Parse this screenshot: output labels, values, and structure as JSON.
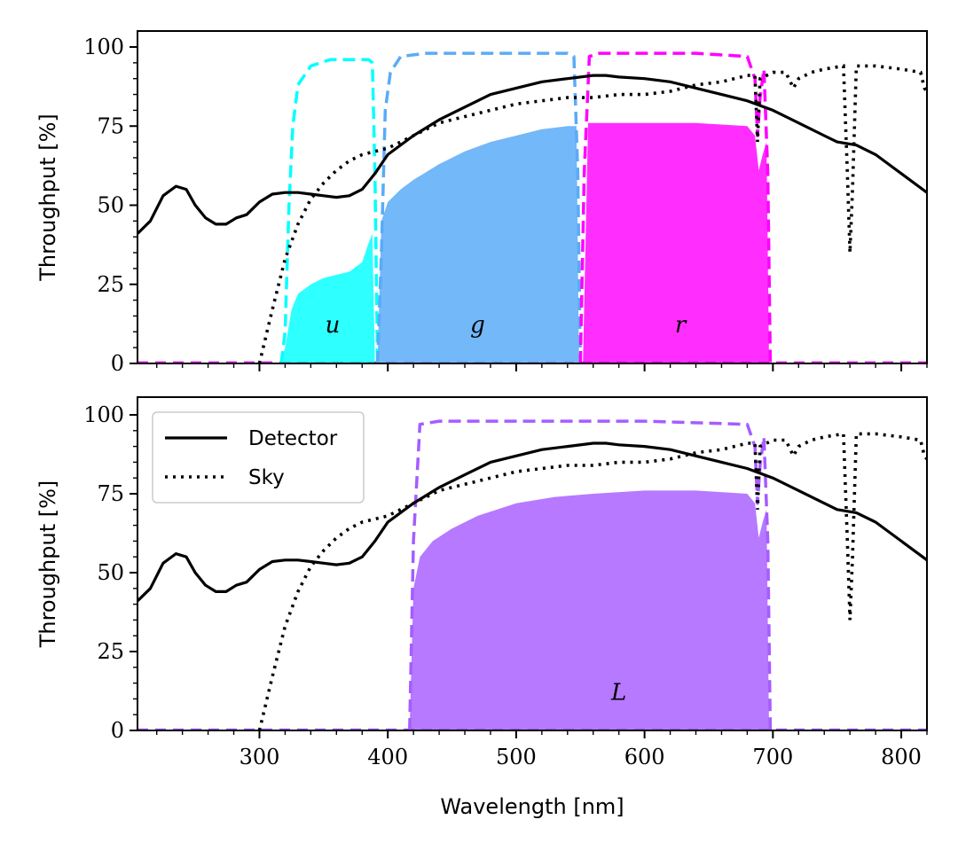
{
  "chart_data": {
    "type": "line",
    "xlabel": "Wavelength [nm]",
    "xlim": [
      205,
      820
    ],
    "x_ticks": [
      300,
      400,
      500,
      600,
      700,
      800
    ],
    "x_tick_labels": [
      "300",
      "400",
      "500",
      "600",
      "700",
      "800"
    ],
    "y_ticks": [
      0,
      25,
      50,
      75,
      100
    ],
    "y_tick_labels": [
      "0",
      "25",
      "50",
      "75",
      "100"
    ],
    "colors": {
      "detector": "#000000",
      "sky": "#000000",
      "u": "#00ffff",
      "g": "#5aabf7",
      "r": "#ff00ff",
      "L": "#a65cff"
    },
    "legend": {
      "location": "upper-left",
      "entries": [
        {
          "label": "Detector",
          "style": "solid"
        },
        {
          "label": "Sky",
          "style": "dotted"
        }
      ]
    },
    "detector": {
      "x": [
        205,
        215,
        225,
        235,
        243,
        250,
        258,
        266,
        274,
        282,
        290,
        300,
        310,
        320,
        330,
        340,
        350,
        360,
        370,
        380,
        390,
        400,
        420,
        440,
        460,
        480,
        500,
        520,
        540,
        560,
        570,
        580,
        600,
        620,
        640,
        660,
        680,
        700,
        720,
        740,
        750,
        765,
        780,
        800,
        820
      ],
      "y": [
        41,
        45,
        53,
        56,
        55,
        50,
        46,
        44,
        44,
        46,
        47,
        51,
        53.5,
        54,
        54,
        53.5,
        53,
        52.5,
        53,
        55,
        60,
        66,
        72,
        77,
        81,
        85,
        87,
        89,
        90,
        91,
        91,
        90.5,
        90,
        89,
        87,
        85,
        83,
        80,
        76,
        72,
        70,
        69,
        66,
        60,
        54
      ]
    },
    "sky": {
      "x": [
        300,
        310,
        320,
        330,
        340,
        350,
        360,
        370,
        380,
        390,
        400,
        420,
        440,
        460,
        480,
        500,
        520,
        540,
        560,
        580,
        600,
        620,
        640,
        660,
        680,
        686,
        688,
        690,
        700,
        710,
        716,
        720,
        730,
        740,
        755,
        758,
        760,
        762,
        765,
        770,
        780,
        800,
        815,
        818,
        820
      ],
      "y": [
        0,
        17,
        33,
        44,
        52,
        57,
        61,
        64,
        66,
        67,
        68,
        72,
        76,
        78,
        80,
        82,
        83,
        84,
        84,
        85,
        85,
        86,
        88,
        89,
        91,
        91,
        70,
        90,
        92,
        92,
        87,
        90,
        92,
        93,
        94,
        60,
        35,
        55,
        94,
        94,
        94,
        93,
        92,
        87,
        86
      ]
    },
    "panels": [
      {
        "name": "top",
        "ylabel": "Throughput [%]",
        "bands": [
          {
            "name": "u",
            "label": "u",
            "label_x": 357,
            "label_y": 12,
            "transmission": {
              "x": [
                317,
                320,
                323,
                326,
                330,
                340,
                355,
                370,
                385,
                388,
                390,
                392
              ],
              "y": [
                0,
                10,
                50,
                75,
                88,
                94,
                96,
                96,
                96,
                95,
                60,
                0
              ]
            },
            "throughput": {
              "x": [
                317,
                320,
                325,
                330,
                340,
                350,
                360,
                370,
                380,
                385,
                388,
                390
              ],
              "y": [
                0,
                5,
                17,
                22,
                25,
                27,
                28,
                29,
                32,
                38,
                41,
                0
              ]
            }
          },
          {
            "name": "g",
            "label": "g",
            "label_x": 470,
            "label_y": 12,
            "transmission": {
              "x": [
                392,
                395,
                398,
                402,
                410,
                430,
                470,
                510,
                540,
                545,
                548,
                550
              ],
              "y": [
                0,
                35,
                80,
                92,
                97,
                98,
                98,
                98,
                98,
                97,
                60,
                0
              ]
            },
            "throughput": {
              "x": [
                392,
                395,
                400,
                410,
                420,
                440,
                460,
                480,
                500,
                520,
                540,
                547,
                549
              ],
              "y": [
                0,
                45,
                51,
                55,
                58,
                63,
                67,
                70,
                72,
                74,
                75,
                75,
                0
              ]
            }
          },
          {
            "name": "r",
            "label": "r",
            "label_x": 628,
            "label_y": 12,
            "transmission": {
              "x": [
                550,
                553,
                557,
                565,
                600,
                640,
                680,
                686,
                688,
                690,
                693,
                696,
                698
              ],
              "y": [
                0,
                60,
                97,
                98,
                98,
                98,
                97,
                90,
                72,
                84,
                93,
                60,
                0
              ]
            },
            "throughput": {
              "x": [
                552,
                556,
                560,
                600,
                640,
                680,
                686,
                689,
                692,
                695,
                697
              ],
              "y": [
                0,
                76,
                76,
                76,
                76,
                75,
                72,
                61,
                66,
                70,
                0
              ]
            }
          }
        ]
      },
      {
        "name": "bottom",
        "ylabel": "Throughput [%]",
        "bands": [
          {
            "name": "L",
            "label": "L",
            "label_x": 580,
            "label_y": 12,
            "transmission": {
              "x": [
                417,
                420,
                425,
                440,
                500,
                600,
                680,
                686,
                688,
                690,
                693,
                696,
                698
              ],
              "y": [
                0,
                60,
                97,
                98,
                98,
                98,
                97,
                90,
                72,
                84,
                93,
                60,
                0
              ]
            },
            "throughput": {
              "x": [
                417,
                420,
                425,
                435,
                450,
                470,
                500,
                530,
                560,
                600,
                640,
                680,
                686,
                689,
                692,
                695,
                697
              ],
              "y": [
                0,
                45,
                55,
                60,
                64,
                68,
                72,
                74,
                75,
                76,
                76,
                75,
                72,
                61,
                66,
                70,
                0
              ]
            }
          }
        ]
      }
    ]
  }
}
